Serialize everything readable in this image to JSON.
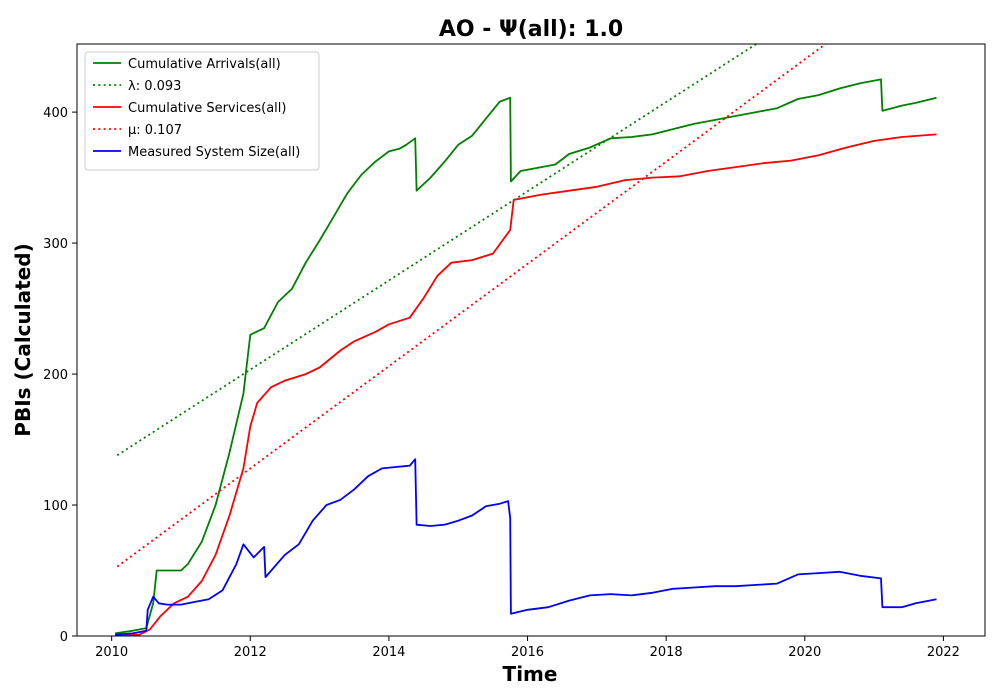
{
  "chart_data": {
    "type": "line",
    "title": "AO -  Ψ(all): 1.0",
    "xlabel": "Time",
    "ylabel": "PBIs (Calculated)",
    "xlim": [
      2009.5,
      2022.6
    ],
    "ylim": [
      0,
      452
    ],
    "x_ticks": [
      2010,
      2012,
      2014,
      2016,
      2018,
      2020,
      2022
    ],
    "y_ticks": [
      0,
      100,
      200,
      300,
      400
    ],
    "grid": false,
    "legend_position": "top-left",
    "legend": [
      {
        "label": "Cumulative Arrivals(all)",
        "color": "#008000",
        "style": "solid"
      },
      {
        "label": "λ: 0.093",
        "color": "#008000",
        "style": "dotted"
      },
      {
        "label": "Cumulative Services(all)",
        "color": "#ff0000",
        "style": "solid"
      },
      {
        "label": "μ: 0.107",
        "color": "#ff0000",
        "style": "dotted"
      },
      {
        "label": "Measured System Size(all)",
        "color": "#0000ff",
        "style": "solid"
      }
    ],
    "series": [
      {
        "name": "Cumulative Arrivals(all)",
        "color": "#008000",
        "style": "solid",
        "points": [
          [
            2010.05,
            2
          ],
          [
            2010.3,
            4
          ],
          [
            2010.5,
            6
          ],
          [
            2010.6,
            25
          ],
          [
            2010.65,
            50
          ],
          [
            2010.8,
            50
          ],
          [
            2011.0,
            50
          ],
          [
            2011.1,
            55
          ],
          [
            2011.3,
            72
          ],
          [
            2011.5,
            100
          ],
          [
            2011.7,
            140
          ],
          [
            2011.9,
            185
          ],
          [
            2012.0,
            230
          ],
          [
            2012.2,
            235
          ],
          [
            2012.4,
            255
          ],
          [
            2012.6,
            265
          ],
          [
            2012.8,
            285
          ],
          [
            2013.0,
            302
          ],
          [
            2013.2,
            320
          ],
          [
            2013.4,
            338
          ],
          [
            2013.6,
            352
          ],
          [
            2013.8,
            362
          ],
          [
            2014.0,
            370
          ],
          [
            2014.15,
            372
          ],
          [
            2014.25,
            375
          ],
          [
            2014.38,
            380
          ],
          [
            2014.4,
            340
          ],
          [
            2014.6,
            350
          ],
          [
            2014.8,
            362
          ],
          [
            2015.0,
            375
          ],
          [
            2015.2,
            382
          ],
          [
            2015.4,
            395
          ],
          [
            2015.6,
            408
          ],
          [
            2015.75,
            411
          ],
          [
            2015.76,
            347
          ],
          [
            2015.9,
            355
          ],
          [
            2016.2,
            358
          ],
          [
            2016.4,
            360
          ],
          [
            2016.6,
            368
          ],
          [
            2016.9,
            373
          ],
          [
            2017.2,
            380
          ],
          [
            2017.5,
            381
          ],
          [
            2017.8,
            383
          ],
          [
            2018.1,
            387
          ],
          [
            2018.4,
            391
          ],
          [
            2018.7,
            394
          ],
          [
            2019.0,
            397
          ],
          [
            2019.3,
            400
          ],
          [
            2019.6,
            403
          ],
          [
            2019.9,
            410
          ],
          [
            2020.2,
            413
          ],
          [
            2020.5,
            418
          ],
          [
            2020.8,
            422
          ],
          [
            2021.1,
            425
          ],
          [
            2021.12,
            401
          ],
          [
            2021.4,
            405
          ],
          [
            2021.6,
            407
          ],
          [
            2021.9,
            411
          ]
        ]
      },
      {
        "name": "λ: 0.093",
        "color": "#008000",
        "style": "dotted",
        "points": [
          [
            2010.08,
            138
          ],
          [
            2019.3,
            452
          ]
        ]
      },
      {
        "name": "Cumulative Services(all)",
        "color": "#ff0000",
        "style": "solid",
        "points": [
          [
            2010.05,
            0
          ],
          [
            2010.4,
            1
          ],
          [
            2010.55,
            5
          ],
          [
            2010.7,
            15
          ],
          [
            2010.9,
            25
          ],
          [
            2011.1,
            30
          ],
          [
            2011.3,
            42
          ],
          [
            2011.5,
            62
          ],
          [
            2011.7,
            92
          ],
          [
            2011.9,
            128
          ],
          [
            2012.0,
            160
          ],
          [
            2012.1,
            178
          ],
          [
            2012.3,
            190
          ],
          [
            2012.5,
            195
          ],
          [
            2012.8,
            200
          ],
          [
            2013.0,
            205
          ],
          [
            2013.3,
            218
          ],
          [
            2013.5,
            225
          ],
          [
            2013.8,
            232
          ],
          [
            2014.0,
            238
          ],
          [
            2014.3,
            243
          ],
          [
            2014.5,
            258
          ],
          [
            2014.7,
            275
          ],
          [
            2014.9,
            285
          ],
          [
            2015.2,
            287
          ],
          [
            2015.5,
            292
          ],
          [
            2015.75,
            310
          ],
          [
            2015.8,
            333
          ],
          [
            2016.2,
            337
          ],
          [
            2016.6,
            340
          ],
          [
            2017.0,
            343
          ],
          [
            2017.4,
            348
          ],
          [
            2017.8,
            350
          ],
          [
            2018.2,
            351
          ],
          [
            2018.6,
            355
          ],
          [
            2019.0,
            358
          ],
          [
            2019.4,
            361
          ],
          [
            2019.8,
            363
          ],
          [
            2020.2,
            367
          ],
          [
            2020.6,
            373
          ],
          [
            2021.0,
            378
          ],
          [
            2021.4,
            381
          ],
          [
            2021.9,
            383
          ]
        ]
      },
      {
        "name": "μ: 0.107",
        "color": "#ff0000",
        "style": "dotted",
        "points": [
          [
            2010.08,
            53
          ],
          [
            2020.3,
            452
          ]
        ]
      },
      {
        "name": "Measured System Size(all)",
        "color": "#0000ff",
        "style": "solid",
        "points": [
          [
            2010.05,
            1
          ],
          [
            2010.3,
            2
          ],
          [
            2010.5,
            4
          ],
          [
            2010.52,
            20
          ],
          [
            2010.6,
            30
          ],
          [
            2010.68,
            25
          ],
          [
            2010.8,
            24
          ],
          [
            2011.0,
            24
          ],
          [
            2011.2,
            26
          ],
          [
            2011.4,
            28
          ],
          [
            2011.6,
            35
          ],
          [
            2011.8,
            55
          ],
          [
            2011.9,
            70
          ],
          [
            2012.05,
            60
          ],
          [
            2012.2,
            68
          ],
          [
            2012.22,
            45
          ],
          [
            2012.5,
            62
          ],
          [
            2012.7,
            70
          ],
          [
            2012.9,
            88
          ],
          [
            2013.1,
            100
          ],
          [
            2013.3,
            104
          ],
          [
            2013.5,
            112
          ],
          [
            2013.7,
            122
          ],
          [
            2013.9,
            128
          ],
          [
            2014.1,
            129
          ],
          [
            2014.3,
            130
          ],
          [
            2014.38,
            135
          ],
          [
            2014.4,
            85
          ],
          [
            2014.6,
            84
          ],
          [
            2014.8,
            85
          ],
          [
            2015.0,
            88
          ],
          [
            2015.2,
            92
          ],
          [
            2015.4,
            99
          ],
          [
            2015.6,
            101
          ],
          [
            2015.72,
            103
          ],
          [
            2015.75,
            90
          ],
          [
            2015.76,
            17
          ],
          [
            2016.0,
            20
          ],
          [
            2016.3,
            22
          ],
          [
            2016.6,
            27
          ],
          [
            2016.9,
            31
          ],
          [
            2017.2,
            32
          ],
          [
            2017.5,
            31
          ],
          [
            2017.8,
            33
          ],
          [
            2018.1,
            36
          ],
          [
            2018.4,
            37
          ],
          [
            2018.7,
            38
          ],
          [
            2019.0,
            38
          ],
          [
            2019.3,
            39
          ],
          [
            2019.6,
            40
          ],
          [
            2019.9,
            47
          ],
          [
            2020.2,
            48
          ],
          [
            2020.5,
            49
          ],
          [
            2020.8,
            46
          ],
          [
            2021.1,
            44
          ],
          [
            2021.12,
            22
          ],
          [
            2021.4,
            22
          ],
          [
            2021.6,
            25
          ],
          [
            2021.9,
            28
          ]
        ]
      }
    ]
  }
}
